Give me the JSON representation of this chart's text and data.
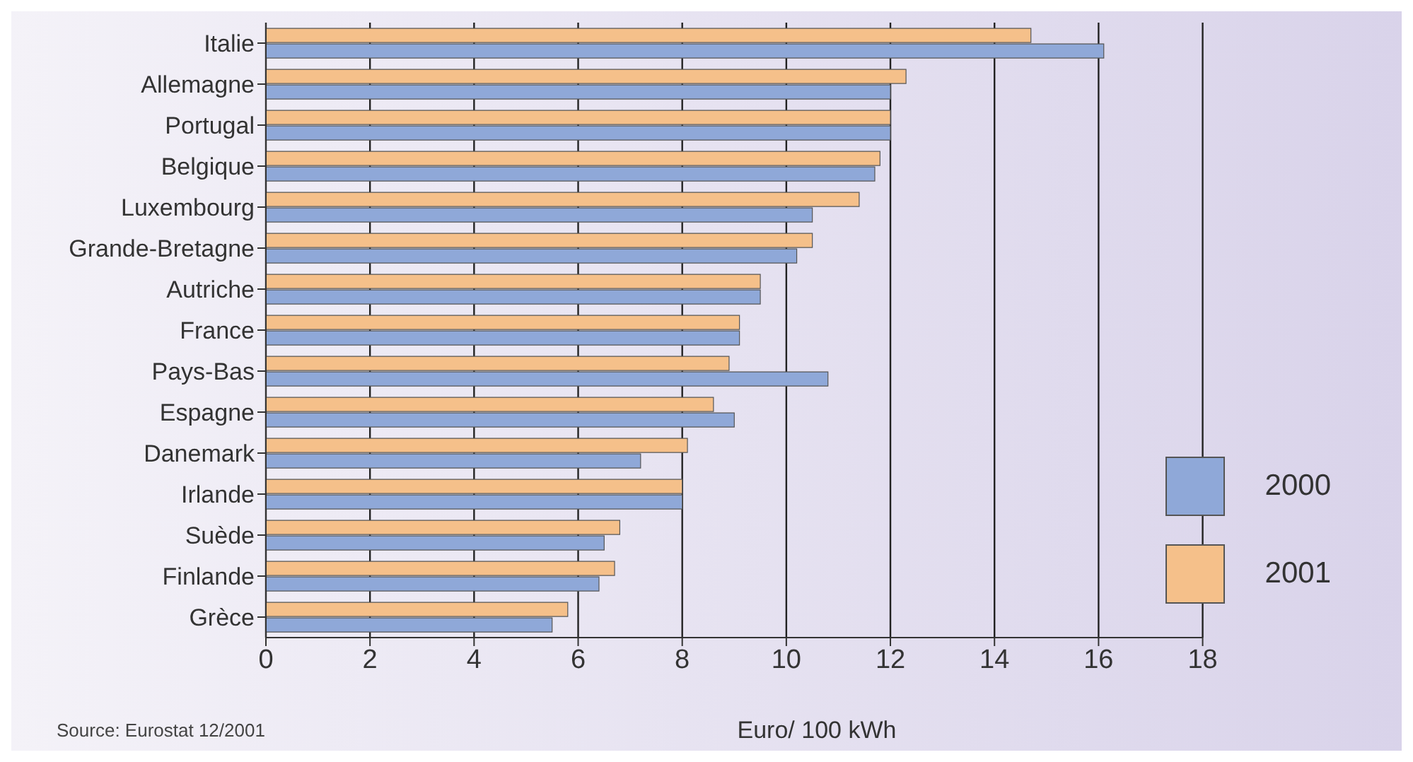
{
  "chart_data": {
    "type": "bar",
    "orientation": "horizontal",
    "xlabel": "Euro/ 100 kWh",
    "annotations": [
      "Source: Eurostat 12/2001"
    ],
    "categories": [
      "Italie",
      "Allemagne",
      "Portugal",
      "Belgique",
      "Luxembourg",
      "Grande-Bretagne",
      "Autriche",
      "France",
      "Pays-Bas",
      "Espagne",
      "Danemark",
      "Irlande",
      "Suède",
      "Finlande",
      "Grèce"
    ],
    "series": [
      {
        "name": "2001",
        "color": "#f5c08a",
        "values": [
          14.7,
          12.3,
          12.0,
          11.8,
          11.4,
          10.5,
          9.5,
          9.1,
          8.9,
          8.6,
          8.1,
          8.0,
          6.8,
          6.7,
          5.8
        ]
      },
      {
        "name": "2000",
        "color": "#8fa8d8",
        "values": [
          16.1,
          12.0,
          12.0,
          11.7,
          10.5,
          10.2,
          9.5,
          9.1,
          10.8,
          9.0,
          7.2,
          8.0,
          6.5,
          6.4,
          5.5
        ]
      }
    ],
    "xlim": [
      0,
      18
    ],
    "xticks": [
      0,
      2,
      4,
      6,
      8,
      10,
      12,
      14,
      16,
      18
    ],
    "grid": "x",
    "legend": "right"
  }
}
